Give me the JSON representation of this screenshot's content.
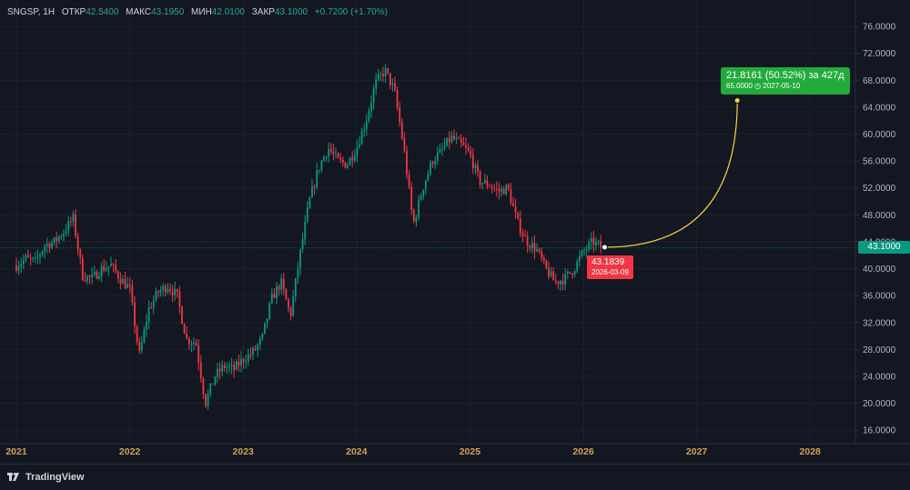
{
  "legend": {
    "ticker": "SNGSP, 1Н",
    "open_label": "ОТКР",
    "open": "42.5400",
    "high_label": "МАКС",
    "high": "43.1950",
    "low_label": "МИН",
    "low": "42.0100",
    "close_label": "ЗАКР",
    "close": "43.1000",
    "change": "+0.7200 (+1.70%)"
  },
  "last_price_label": "43.1000",
  "marker": {
    "price": "43.1839",
    "date": "2026-03-09"
  },
  "projection": {
    "line1": "21.8161 (50.52%) за 427д",
    "target": "65.0000",
    "target_date": "2027-05-10"
  },
  "footer": {
    "brand": "TradingView"
  },
  "colors": {
    "background": "#131722",
    "up": "#089981",
    "down": "#f23645",
    "projection": "#f7d23c",
    "label_green": "#22ab3b"
  },
  "chart_data": {
    "type": "candlestick",
    "x_tick_labels": [
      "2021",
      "2022",
      "2023",
      "2024",
      "2025",
      "2026",
      "2027",
      "2028"
    ],
    "y_tick_labels": [
      "16.0000",
      "20.0000",
      "24.0000",
      "28.0000",
      "32.0000",
      "36.0000",
      "40.0000",
      "44.0000",
      "48.0000",
      "52.0000",
      "56.0000",
      "60.0000",
      "64.0000",
      "68.0000",
      "72.0000",
      "76.0000"
    ],
    "ylim": [
      14.0,
      77.5
    ],
    "last_price": 43.1,
    "close_path": [
      [
        "2021-01",
        40.5
      ],
      [
        "2021-02",
        41.5
      ],
      [
        "2021-03",
        41.0
      ],
      [
        "2021-04",
        43.5
      ],
      [
        "2021-05",
        44.0
      ],
      [
        "2021-06",
        45.5
      ],
      [
        "2021-07",
        47.5
      ],
      [
        "2021-08",
        39.0
      ],
      [
        "2021-09",
        38.5
      ],
      [
        "2021-10",
        40.0
      ],
      [
        "2021-11",
        40.5
      ],
      [
        "2021-12",
        38.5
      ],
      [
        "2022-01",
        37.0
      ],
      [
        "2022-02",
        27.0
      ],
      [
        "2022-03",
        34.0
      ],
      [
        "2022-04",
        36.5
      ],
      [
        "2022-05",
        37.5
      ],
      [
        "2022-06",
        36.0
      ],
      [
        "2022-07",
        29.5
      ],
      [
        "2022-08",
        29.0
      ],
      [
        "2022-09",
        20.0
      ],
      [
        "2022-10",
        24.0
      ],
      [
        "2022-11",
        25.5
      ],
      [
        "2022-12",
        25.0
      ],
      [
        "2023-01",
        26.5
      ],
      [
        "2023-02",
        27.5
      ],
      [
        "2023-03",
        29.5
      ],
      [
        "2023-04",
        35.5
      ],
      [
        "2023-05",
        38.0
      ],
      [
        "2023-06",
        33.0
      ],
      [
        "2023-07",
        42.0
      ],
      [
        "2023-08",
        50.0
      ],
      [
        "2023-09",
        55.0
      ],
      [
        "2023-10",
        58.0
      ],
      [
        "2023-11",
        56.0
      ],
      [
        "2023-12",
        55.5
      ],
      [
        "2024-01",
        58.0
      ],
      [
        "2024-02",
        62.0
      ],
      [
        "2024-03",
        67.5
      ],
      [
        "2024-04",
        69.5
      ],
      [
        "2024-05",
        66.5
      ],
      [
        "2024-06",
        58.0
      ],
      [
        "2024-07",
        46.5
      ],
      [
        "2024-08",
        52.0
      ],
      [
        "2024-09",
        56.0
      ],
      [
        "2024-10",
        57.5
      ],
      [
        "2024-11",
        59.5
      ],
      [
        "2024-12",
        58.5
      ],
      [
        "2025-01",
        57.0
      ],
      [
        "2025-02",
        53.0
      ],
      [
        "2025-03",
        52.5
      ],
      [
        "2025-04",
        51.5
      ],
      [
        "2025-05",
        52.0
      ],
      [
        "2025-06",
        47.0
      ],
      [
        "2025-07",
        44.0
      ],
      [
        "2025-08",
        43.0
      ],
      [
        "2025-09",
        40.0
      ],
      [
        "2025-10",
        38.0
      ],
      [
        "2025-11",
        38.5
      ],
      [
        "2025-12",
        40.0
      ],
      [
        "2026-01",
        42.5
      ],
      [
        "2026-02",
        44.0
      ],
      [
        "2026-03",
        43.1
      ]
    ],
    "projection": {
      "from": [
        "2026-03-09",
        43.1839
      ],
      "to": [
        "2027-05-10",
        65.0
      ]
    }
  }
}
